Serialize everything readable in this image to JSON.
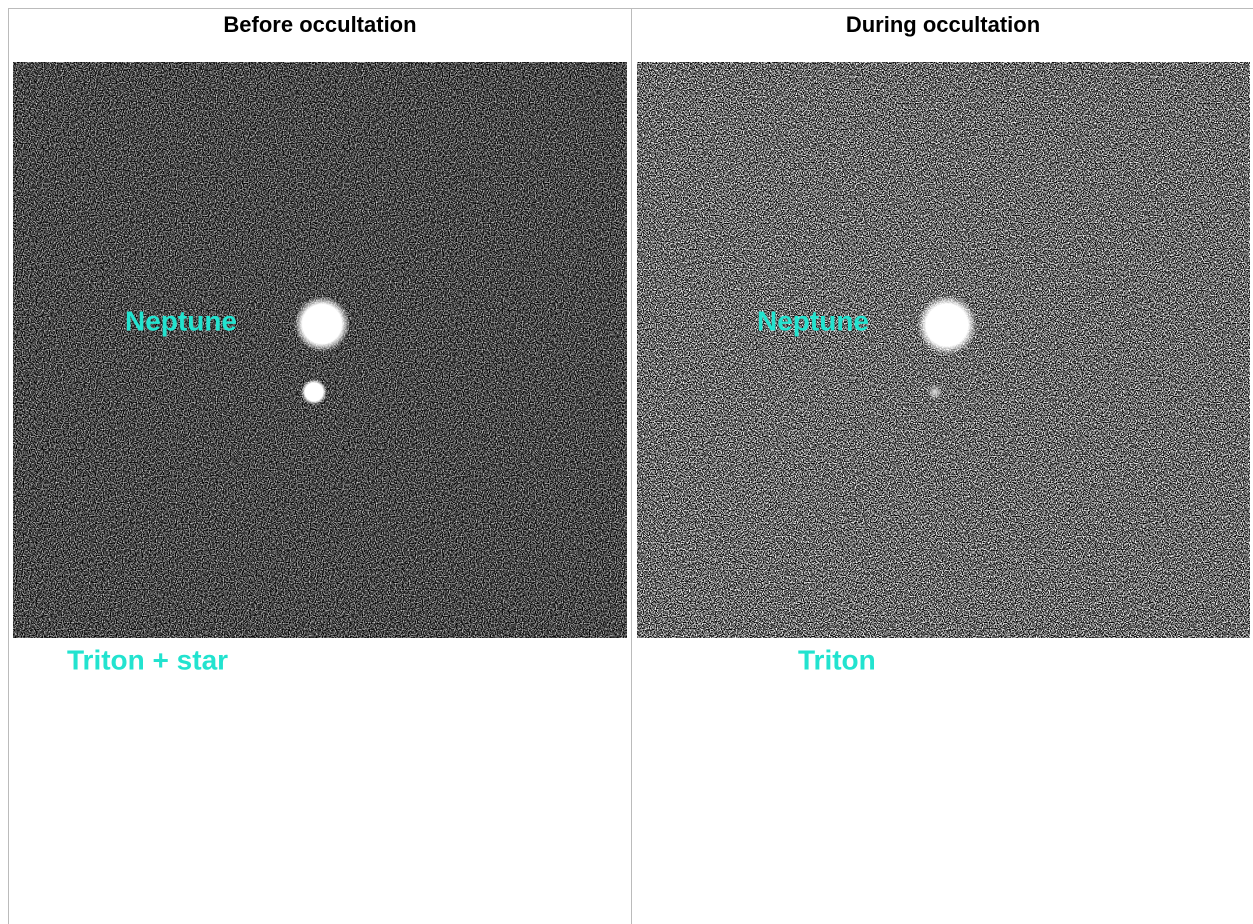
{
  "table": {
    "headers": [
      "Before occultation",
      "During occultation"
    ],
    "panels": [
      {
        "overlay_label": "Neptune",
        "caption": "Triton + star"
      },
      {
        "overlay_label": "Neptune",
        "caption": "Triton"
      }
    ]
  }
}
